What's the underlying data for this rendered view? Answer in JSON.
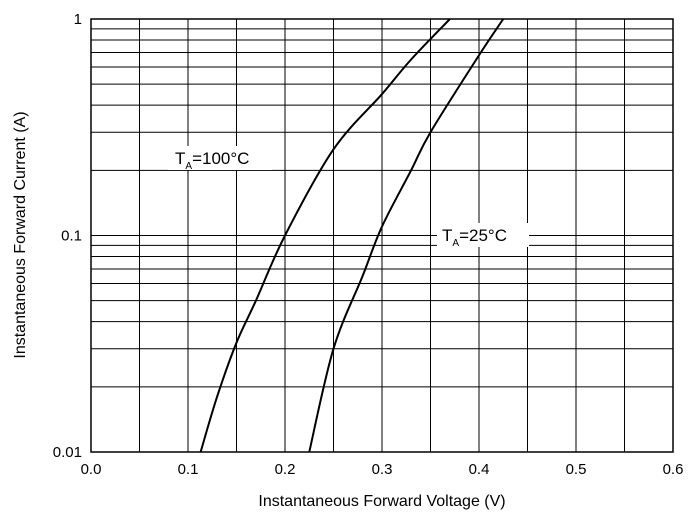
{
  "chart_data": {
    "type": "line",
    "xlabel": "Instantaneous Forward Voltage (V)",
    "ylabel": "Instantaneous Forward Current (A)",
    "xlim": [
      0.0,
      0.6
    ],
    "ylim": [
      0.01,
      1
    ],
    "y_scale": "log",
    "grid": true,
    "x_ticks": [
      "0.0",
      "0.1",
      "0.2",
      "0.3",
      "0.4",
      "0.5",
      "0.6"
    ],
    "y_ticks": [
      "0.01",
      "0.1",
      "1"
    ],
    "series": [
      {
        "name": "TA=100°C",
        "points": [
          [
            0.113,
            0.01
          ],
          [
            0.13,
            0.018
          ],
          [
            0.15,
            0.032
          ],
          [
            0.17,
            0.05
          ],
          [
            0.2,
            0.1
          ],
          [
            0.25,
            0.25
          ],
          [
            0.3,
            0.45
          ],
          [
            0.33,
            0.65
          ],
          [
            0.37,
            1.0
          ]
        ]
      },
      {
        "name": "TA=25°C",
        "points": [
          [
            0.225,
            0.01
          ],
          [
            0.25,
            0.03
          ],
          [
            0.28,
            0.065
          ],
          [
            0.3,
            0.11
          ],
          [
            0.33,
            0.2
          ],
          [
            0.35,
            0.3
          ],
          [
            0.4,
            0.68
          ],
          [
            0.425,
            1.0
          ]
        ]
      }
    ],
    "annotations": [
      {
        "main": "T",
        "sub": "A",
        "rest": "=100°C",
        "series": 0
      },
      {
        "main": "T",
        "sub": "A",
        "rest": "=25°C",
        "series": 1
      }
    ]
  }
}
